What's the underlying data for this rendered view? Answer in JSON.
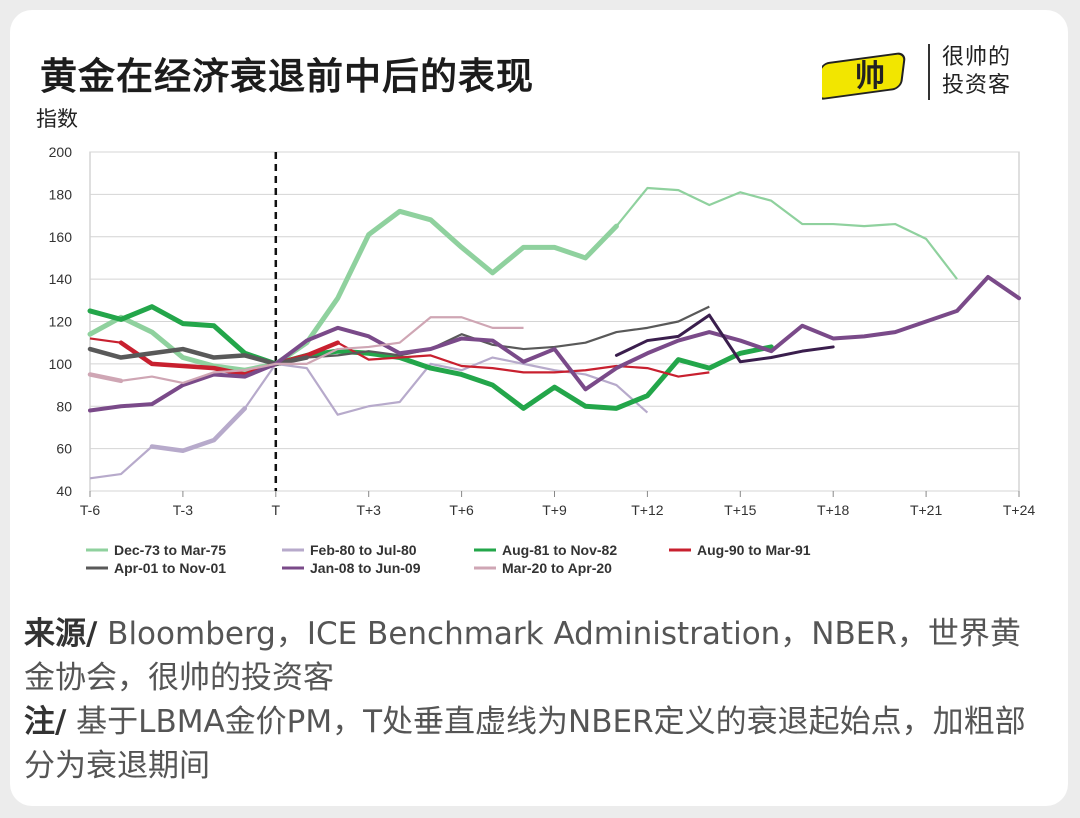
{
  "header": {
    "title": "黄金在经济衰退前中后的表现",
    "brand_line1": "很帅的",
    "brand_line2": "投资客",
    "logo_text": "帅"
  },
  "chart_data": {
    "type": "line",
    "ylabel": "指数",
    "ylim": [
      40,
      200
    ],
    "yticks": [
      40,
      60,
      80,
      100,
      120,
      140,
      160,
      180,
      200
    ],
    "xlim": [
      -6,
      24
    ],
    "xticks": [
      {
        "v": -6,
        "label": "T-6"
      },
      {
        "v": -3,
        "label": "T-3"
      },
      {
        "v": 0,
        "label": "T"
      },
      {
        "v": 3,
        "label": "T+3"
      },
      {
        "v": 6,
        "label": "T+6"
      },
      {
        "v": 9,
        "label": "T+9"
      },
      {
        "v": 12,
        "label": "T+12"
      },
      {
        "v": 15,
        "label": "T+15"
      },
      {
        "v": 18,
        "label": "T+18"
      },
      {
        "v": 21,
        "label": "T+21"
      },
      {
        "v": 24,
        "label": "T+24"
      }
    ],
    "grid": true,
    "legend_position": "bottom",
    "series": [
      {
        "name": "Dec-73 to Mar-75",
        "color": "#8fd19e",
        "width": 5,
        "start": -6,
        "values": [
          114,
          122,
          115,
          103,
          99,
          97,
          100,
          110,
          131,
          161,
          172,
          168,
          155,
          143,
          155,
          155,
          150,
          165,
          183,
          182,
          175,
          181,
          177,
          166,
          166,
          165,
          166,
          159,
          140
        ],
        "thin_from": 17
      },
      {
        "name": "Feb-80 to Jul-80",
        "color": "#b7aacb",
        "width": 3,
        "start": -6,
        "values": [
          46,
          48,
          61,
          59,
          64,
          79,
          100,
          98,
          76,
          80,
          82,
          100,
          97,
          103,
          100,
          97,
          95,
          90,
          77
        ],
        "thick_from": 2,
        "thick_to": 5
      },
      {
        "name": "Aug-81 to Nov-82",
        "color": "#23a64a",
        "width": 5,
        "start": -6,
        "values": [
          125,
          121,
          127,
          119,
          118,
          105,
          100,
          104,
          106,
          105,
          103,
          98,
          95,
          90,
          79,
          89,
          80,
          79,
          85,
          102,
          98,
          105,
          108
        ]
      },
      {
        "name": "Aug-90 to Mar-91",
        "color": "#c8202f",
        "width": 3,
        "start": -6,
        "values": [
          112,
          110,
          100,
          99,
          98,
          95,
          100,
          104,
          110,
          102,
          103,
          104,
          99,
          98,
          96,
          96,
          97,
          99,
          98,
          94,
          96
        ],
        "thick_from": 1,
        "thick_to": 8
      },
      {
        "name": "Apr-01 to Nov-01",
        "color": "#595959",
        "width": 3,
        "start": -6,
        "values": [
          107,
          103,
          105,
          107,
          103,
          104,
          100,
          103,
          104,
          106,
          104,
          107,
          114,
          109,
          107,
          108,
          110,
          115,
          117,
          120,
          127
        ],
        "thick_from": 0,
        "thick_to": 7
      },
      {
        "name": "Jan-08 to Jun-09",
        "color": "#7a4a89",
        "width": 4,
        "start": -6,
        "values": [
          78,
          80,
          81,
          90,
          95,
          94,
          100,
          111,
          117,
          113,
          105,
          107,
          112,
          111,
          101,
          107,
          88,
          98,
          105,
          111,
          115,
          111,
          106,
          118,
          112,
          113,
          115,
          120,
          125,
          141,
          131
        ]
      },
      {
        "name": "Mar-20 to Apr-20",
        "color": "#cfa6b4",
        "width": 3,
        "start": -6,
        "values": [
          95,
          92,
          94,
          91,
          96,
          97,
          100,
          100,
          107,
          108,
          110,
          122,
          122,
          117,
          117
        ],
        "thick_from": 0,
        "thick_to": 1
      }
    ],
    "extra_series": [
      {
        "color": "#3a1e4d",
        "width": 3,
        "start": 11,
        "values": [
          104,
          111,
          113,
          123,
          101,
          103,
          106,
          108
        ]
      }
    ],
    "vline_at": 0
  },
  "footer": {
    "source_label": "来源/",
    "source_text": " Bloomberg，ICE Benchmark Administration，NBER，世界黄金协会，很帅的投资客",
    "note_label": "注/",
    "note_text": " 基于LBMA金价PM，T处垂直虚线为NBER定义的衰退起始点，加粗部分为衰退期间"
  }
}
